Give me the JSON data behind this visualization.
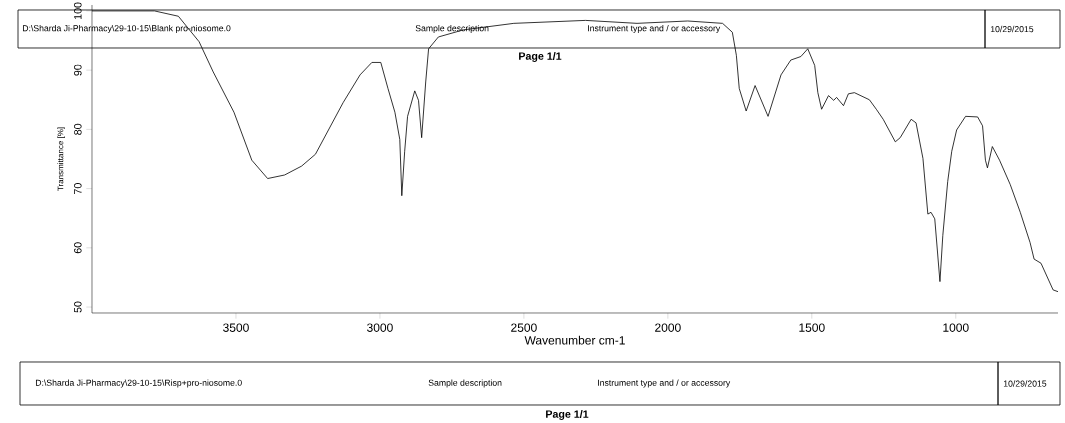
{
  "chart_data": {
    "type": "line",
    "xlabel": "Wavenumber cm-1",
    "ylabel": "Transmittance [%]",
    "xlim": [
      4000,
      645
    ],
    "ylim": [
      49,
      101
    ],
    "xticks": [
      3500,
      3000,
      2500,
      2000,
      1500,
      1000
    ],
    "yticks": [
      50,
      60,
      70,
      80,
      90,
      100
    ],
    "x": [
      4000,
      3783,
      3700,
      3628,
      3579,
      3507,
      3445,
      3390,
      3331,
      3272,
      3224,
      3128,
      3069,
      3028,
      2997,
      2972,
      2948,
      2931,
      2924,
      2914,
      2904,
      2879,
      2866,
      2855,
      2841,
      2831,
      2797,
      2710,
      2535,
      2286,
      2107,
      1931,
      1810,
      1776,
      1762,
      1752,
      1728,
      1697,
      1652,
      1607,
      1573,
      1538,
      1514,
      1490,
      1479,
      1466,
      1442,
      1424,
      1414,
      1390,
      1373,
      1352,
      1300,
      1276,
      1252,
      1210,
      1193,
      1155,
      1138,
      1114,
      1097,
      1086,
      1073,
      1055,
      1045,
      1028,
      1014,
      997,
      966,
      924,
      907,
      897,
      890,
      873,
      848,
      811,
      776,
      742,
      728,
      704,
      662,
      645
    ],
    "series": [
      {
        "color": "#000000",
        "values": [
          100.0,
          100.0,
          99.1,
          94.8,
          89.7,
          82.9,
          74.8,
          71.7,
          72.3,
          73.8,
          75.8,
          84.5,
          89.2,
          91.3,
          91.3,
          86.9,
          82.9,
          78.3,
          68.8,
          76.3,
          82.2,
          86.5,
          84.9,
          78.6,
          88.0,
          93.6,
          95.6,
          96.8,
          97.9,
          98.4,
          97.9,
          98.3,
          97.9,
          96.4,
          92.5,
          86.9,
          83.1,
          87.4,
          82.2,
          89.2,
          91.7,
          92.3,
          93.6,
          90.8,
          86.2,
          83.4,
          85.7,
          84.9,
          85.4,
          84.0,
          86.0,
          86.2,
          85.0,
          83.4,
          81.7,
          77.9,
          78.6,
          81.7,
          81.1,
          75.1,
          65.7,
          66.0,
          64.9,
          54.3,
          62.1,
          71.2,
          76.3,
          79.9,
          82.2,
          82.1,
          80.6,
          74.8,
          73.5,
          77.1,
          74.8,
          70.7,
          66.0,
          60.9,
          58.1,
          57.4,
          52.9,
          52.6
        ]
      }
    ],
    "annotations": [
      "D:\\Sharda Ji-Pharmacy\\29-10-15\\Blank pro-niosome.0",
      "Sample description",
      "Instrument type and / or accessory",
      "10/29/2015",
      "Page 1/1",
      "D:\\Sharda Ji-Pharmacy\\29-10-15\\Risp+pro-niosome.0",
      "Sample description",
      "Instrument type and / or accessory",
      "10/29/2015",
      "Page 1/1"
    ]
  }
}
